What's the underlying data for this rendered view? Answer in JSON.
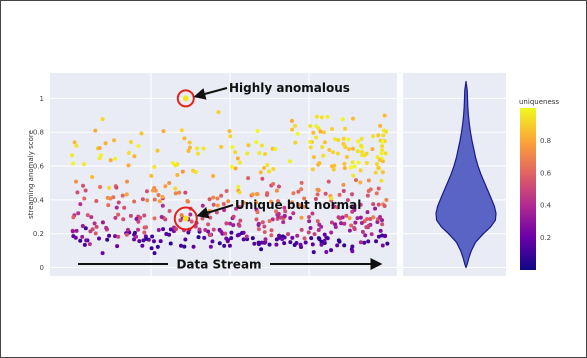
{
  "chart_data": {
    "type": "scatter",
    "ylabel": "streaming anomaly score",
    "ylim": [
      -0.05,
      1.15
    ],
    "yticks": [
      "0",
      "0.2",
      "0.4",
      "0.6",
      "0.8",
      "1"
    ],
    "grid": true,
    "x_axis_label": "Data Stream",
    "annotations": [
      {
        "text": "Highly anomalous",
        "x": 0.36,
        "y": 1.0
      },
      {
        "text": "Unique but normal",
        "x": 0.36,
        "y": 0.29
      }
    ],
    "colorbar": {
      "title": "uniqueness",
      "ticks": [
        "0.8",
        "0.6",
        "0.4",
        "0.2"
      ],
      "colorscale": [
        "#0d0887",
        "#6a00a8",
        "#b12a90",
        "#e16462",
        "#fca636",
        "#f0f921"
      ]
    },
    "clusters": [
      {
        "x_range": [
          0.0,
          1.0
        ],
        "y_center": 0.16,
        "y_spread": 0.05,
        "uniqueness": [
          0.05,
          0.25
        ],
        "count": 120
      },
      {
        "x_range": [
          0.0,
          1.0
        ],
        "y_center": 0.27,
        "y_spread": 0.08,
        "uniqueness": [
          0.3,
          0.6
        ],
        "count": 160
      },
      {
        "x_range": [
          0.0,
          1.0
        ],
        "y_center": 0.42,
        "y_spread": 0.09,
        "uniqueness": [
          0.5,
          0.8
        ],
        "count": 110
      },
      {
        "x_range": [
          0.0,
          1.0
        ],
        "y_center": 0.66,
        "y_spread": 0.15,
        "uniqueness": [
          0.8,
          1.0
        ],
        "count": 110
      },
      {
        "x_range": [
          0.75,
          1.0
        ],
        "y_center": 0.72,
        "y_spread": 0.12,
        "uniqueness": [
          0.85,
          1.0
        ],
        "count": 50
      }
    ],
    "highlighted_points": [
      {
        "x": 0.36,
        "y": 1.0,
        "uniqueness": 0.95
      },
      {
        "x": 0.36,
        "y": 0.29,
        "uniqueness": 0.95
      }
    ],
    "violin": {
      "density_profile": [
        [
          0.0,
          0.0
        ],
        [
          0.02,
          0.04
        ],
        [
          0.06,
          0.1
        ],
        [
          0.1,
          0.18
        ],
        [
          0.15,
          0.32
        ],
        [
          0.2,
          0.58
        ],
        [
          0.24,
          0.82
        ],
        [
          0.28,
          0.98
        ],
        [
          0.32,
          1.0
        ],
        [
          0.36,
          0.95
        ],
        [
          0.4,
          0.86
        ],
        [
          0.45,
          0.74
        ],
        [
          0.5,
          0.62
        ],
        [
          0.55,
          0.5
        ],
        [
          0.6,
          0.4
        ],
        [
          0.65,
          0.32
        ],
        [
          0.7,
          0.26
        ],
        [
          0.75,
          0.2
        ],
        [
          0.8,
          0.15
        ],
        [
          0.85,
          0.11
        ],
        [
          0.9,
          0.08
        ],
        [
          0.95,
          0.06
        ],
        [
          1.0,
          0.05
        ],
        [
          1.05,
          0.04
        ],
        [
          1.1,
          0.0
        ]
      ],
      "fill": "#5a64c4",
      "stroke": "#1a1a8c"
    }
  }
}
